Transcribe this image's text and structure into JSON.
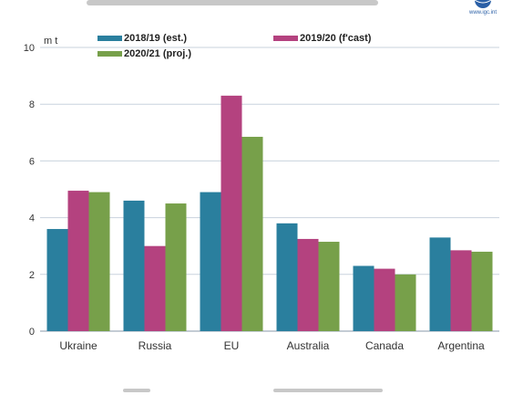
{
  "chart_data": {
    "type": "bar",
    "unit_label": "m t",
    "categories": [
      "Ukraine",
      "Russia",
      "EU",
      "Australia",
      "Canada",
      "Argentina"
    ],
    "series": [
      {
        "name": "2018/19 (est.)",
        "color": "#2a7f9e",
        "values": [
          3.6,
          4.6,
          4.9,
          3.8,
          2.3,
          3.3
        ]
      },
      {
        "name": "2019/20 (f'cast)",
        "color": "#b4427f",
        "values": [
          4.95,
          3.0,
          8.3,
          3.25,
          2.2,
          2.85
        ]
      },
      {
        "name": "2020/21 (proj.)",
        "color": "#77a04a",
        "values": [
          4.9,
          4.5,
          6.85,
          3.15,
          2.0,
          2.8
        ]
      }
    ],
    "ylim": [
      0,
      10
    ],
    "yticks": [
      0,
      2,
      4,
      6,
      8,
      10
    ],
    "grid": true,
    "legend": "top"
  },
  "logo": {
    "icon": "globe-icon",
    "text": "www.igc.int"
  }
}
